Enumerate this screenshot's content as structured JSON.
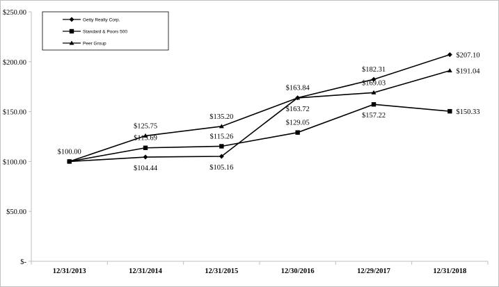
{
  "chart_data": {
    "type": "line",
    "title": "",
    "xlabel": "",
    "ylabel": "",
    "categories": [
      "12/31/2013",
      "12/31/2014",
      "12/31/2015",
      "12/30/2016",
      "12/29/2017",
      "12/31/2018"
    ],
    "ylim": [
      0,
      250
    ],
    "yticks": [
      0,
      50,
      100,
      150,
      200,
      250
    ],
    "ytick_labels": [
      "$-",
      "$50.00",
      "$100.00",
      "$150.00",
      "$200.00",
      "$250.00"
    ],
    "grid": false,
    "legend_position": "top-left",
    "series": [
      {
        "name": "Getty Realty Corp.",
        "marker": "diamond",
        "values": [
          100.0,
          104.44,
          105.16,
          163.84,
          182.31,
          207.1
        ],
        "value_labels": [
          "$100.00",
          "$104.44",
          "$105.16",
          "$163.84",
          "$182.31",
          "$207.10"
        ],
        "label_side": [
          "above",
          "below",
          "below",
          "above",
          "above",
          "right"
        ]
      },
      {
        "name": "Standard & Poors 500",
        "marker": "square",
        "values": [
          100.0,
          113.69,
          115.26,
          129.05,
          157.22,
          150.33
        ],
        "value_labels": [
          "",
          "$113.69",
          "$115.26",
          "$129.05",
          "$157.22",
          "$150.33"
        ],
        "label_side": [
          "none",
          "above",
          "above",
          "above",
          "below",
          "right"
        ]
      },
      {
        "name": "Peer Group",
        "marker": "triangle",
        "values": [
          100.0,
          125.75,
          135.2,
          163.72,
          169.03,
          191.04
        ],
        "value_labels": [
          "",
          "$125.75",
          "$135.20",
          "$163.72",
          "$169.03",
          "$191.04"
        ],
        "label_side": [
          "none",
          "above",
          "above",
          "below",
          "above",
          "right"
        ]
      }
    ],
    "colors": {
      "line": "#000000",
      "axis": "#bfbfbf"
    }
  }
}
